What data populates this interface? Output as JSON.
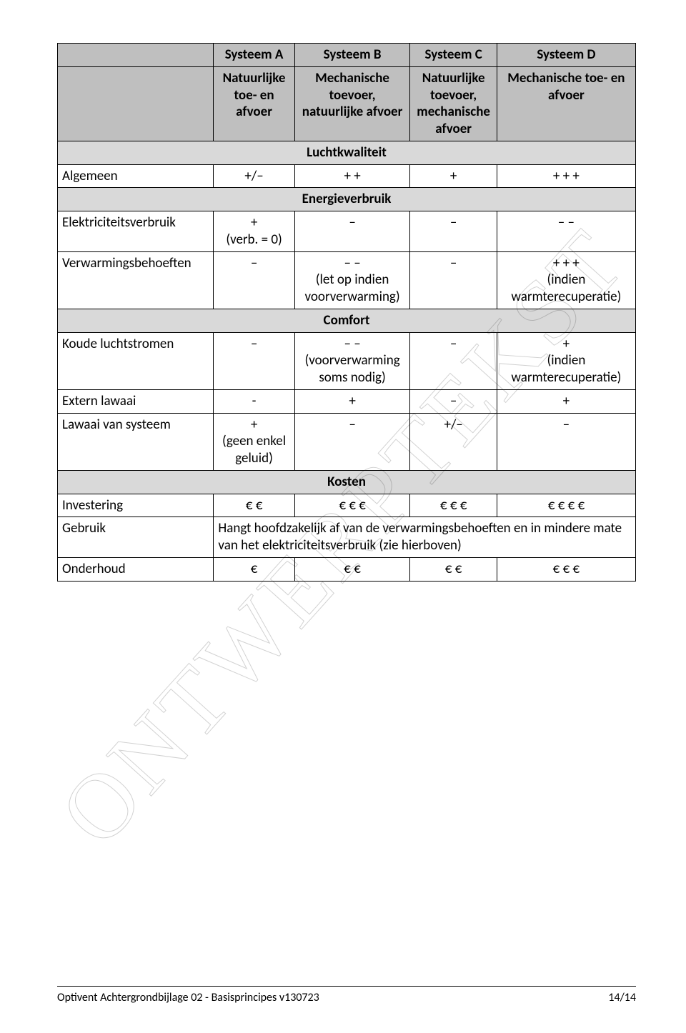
{
  "watermark": {
    "text": "ONTWERPTEKST",
    "color_stroke": "rgba(0,0,0,0.18)",
    "font_family": "Times New Roman",
    "rotation_deg": -48
  },
  "colors": {
    "header_bg": "#bfbfbf",
    "section_bg": "#d9d9d9",
    "border": "#000000",
    "text": "#000000",
    "page_bg": "#ffffff"
  },
  "table": {
    "columns": [
      {
        "key": "label",
        "header1": "",
        "header2": "",
        "width_pct": 27,
        "align": "left"
      },
      {
        "key": "A",
        "header1": "Systeem A",
        "header2": "Natuurlijke toe- en afvoer",
        "width_pct": 14,
        "align": "center"
      },
      {
        "key": "B",
        "header1": "Systeem B",
        "header2": "Mechanische toevoer, natuurlijke afvoer",
        "width_pct": 20,
        "align": "center"
      },
      {
        "key": "C",
        "header1": "Systeem C",
        "header2": "Natuurlijke toevoer, mechanische afvoer",
        "width_pct": 15,
        "align": "center"
      },
      {
        "key": "D",
        "header1": "Systeem D",
        "header2": "Mechanische toe- en afvoer",
        "width_pct": 24,
        "align": "center"
      }
    ],
    "sections": [
      {
        "title": "Luchtkwaliteit",
        "rows": [
          {
            "label": "Algemeen",
            "A": "+/–",
            "B": "+ +",
            "C": "+",
            "D": "+ + +"
          }
        ]
      },
      {
        "title": "Energieverbruik",
        "rows": [
          {
            "label": "Elektriciteitsverbruik",
            "A": "+\n(verb. = 0)",
            "B": "–",
            "C": "–",
            "D": "– –"
          },
          {
            "label": "Verwarmingsbehoeften",
            "A": "–",
            "B": "– –\n(let op indien voorverwarming)",
            "C": "–",
            "D": "+ + +\n(indien warmterecuperatie)"
          }
        ]
      },
      {
        "title": "Comfort",
        "rows": [
          {
            "label": "Koude luchtstromen",
            "A": "–",
            "B": "– –\n(voorverwarming soms nodig)",
            "C": "–",
            "D": "+\n(indien warmterecuperatie)"
          },
          {
            "label": "Extern lawaai",
            "A": "-",
            "B": "+",
            "C": "–",
            "D": "+"
          },
          {
            "label": "Lawaai van systeem",
            "A": "+\n(geen enkel geluid)",
            "B": "–",
            "C": "+/–",
            "D": "–"
          }
        ]
      },
      {
        "title": "Kosten",
        "rows": [
          {
            "label": "Investering",
            "A": "€ €",
            "B": "€ € €",
            "C": "€ € €",
            "D": "€ € € €"
          },
          {
            "label": "Gebruik",
            "span_text": "Hangt hoofdzakelijk af van de verwarmingsbehoeften en in mindere mate van het elektriciteitsverbruik (zie hierboven)"
          },
          {
            "label": "Onderhoud",
            "A": "€",
            "B": "€ €",
            "C": "€ €",
            "D": "€ € €"
          }
        ]
      }
    ]
  },
  "footer": {
    "doc_title": "Optivent Achtergrondbijlage 02 - Basisprincipes v130723",
    "page": "14/14"
  }
}
